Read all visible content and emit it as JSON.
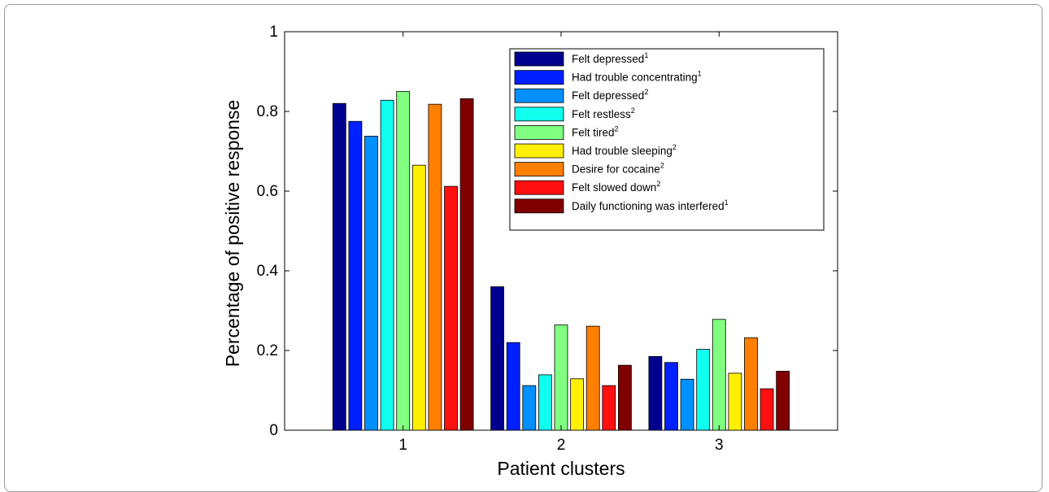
{
  "chart_data": {
    "type": "bar",
    "xlabel": "Patient clusters",
    "ylabel": "Percentage of positive response",
    "categories": [
      "1",
      "2",
      "3"
    ],
    "ylim": [
      0,
      1
    ],
    "yticks": [
      "0",
      "0.2",
      "0.4",
      "0.6",
      "0.8",
      "1"
    ],
    "legend_position": "top-right",
    "grid": false,
    "series": [
      {
        "name": "Felt depressed",
        "sup": "1",
        "color": "#00008f",
        "values": [
          0.82,
          0.36,
          0.185
        ]
      },
      {
        "name": "Had trouble concentrating",
        "sup": "1",
        "color": "#0020ff",
        "values": [
          0.775,
          0.22,
          0.17
        ]
      },
      {
        "name": "Felt depressed",
        "sup": "2",
        "color": "#0090ff",
        "values": [
          0.738,
          0.112,
          0.128
        ]
      },
      {
        "name": "Felt restless",
        "sup": "2",
        "color": "#10ffef",
        "values": [
          0.828,
          0.139,
          0.203
        ]
      },
      {
        "name": "Felt tired",
        "sup": "2",
        "color": "#80ff80",
        "values": [
          0.85,
          0.264,
          0.278
        ]
      },
      {
        "name": "Had trouble sleeping",
        "sup": "2",
        "color": "#ffef00",
        "values": [
          0.665,
          0.129,
          0.143
        ]
      },
      {
        "name": "Desire for cocaine",
        "sup": "2",
        "color": "#ff7f00",
        "values": [
          0.818,
          0.261,
          0.232
        ]
      },
      {
        "name": "Felt slowed down",
        "sup": "2",
        "color": "#ff1010",
        "values": [
          0.612,
          0.112,
          0.104
        ]
      },
      {
        "name": "Daily functioning was interfered",
        "sup": "1",
        "color": "#800000",
        "values": [
          0.832,
          0.163,
          0.148
        ]
      }
    ]
  }
}
